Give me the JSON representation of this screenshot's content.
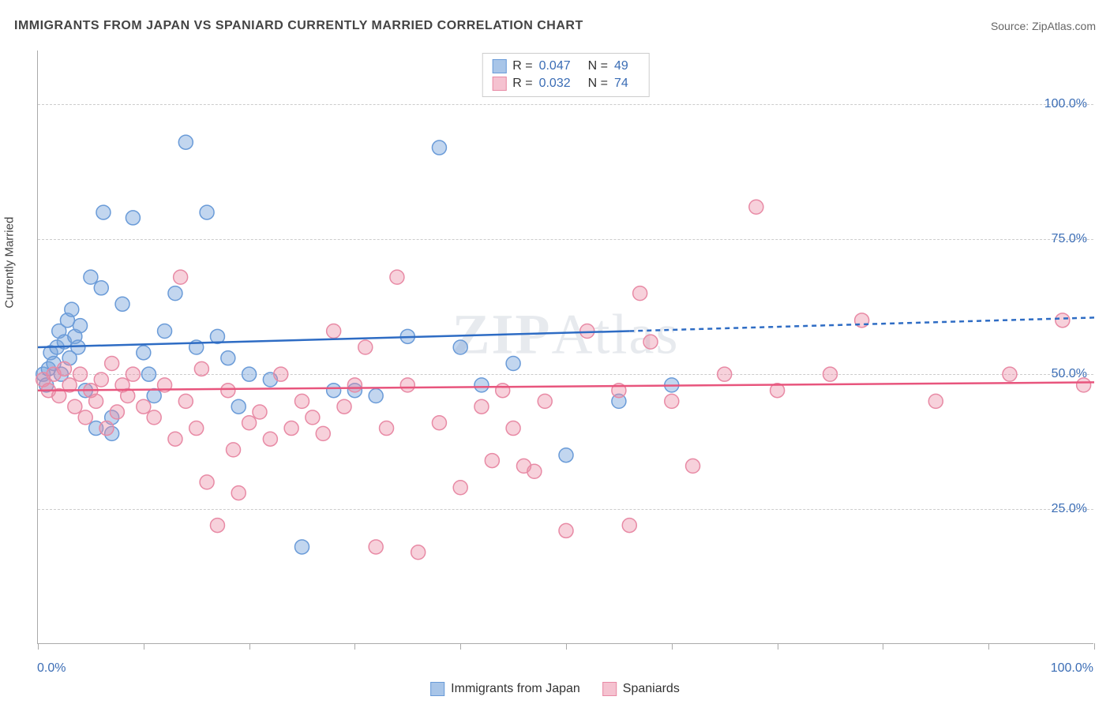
{
  "title": "IMMIGRANTS FROM JAPAN VS SPANIARD CURRENTLY MARRIED CORRELATION CHART",
  "source_label": "Source: ",
  "source_value": "ZipAtlas.com",
  "watermark": {
    "part1": "ZIP",
    "part2": "Atlas"
  },
  "y_axis_title": "Currently Married",
  "chart": {
    "type": "scatter",
    "xlim": [
      0,
      100
    ],
    "ylim": [
      0,
      110
    ],
    "x_ticks": [
      0,
      10,
      20,
      30,
      40,
      50,
      60,
      70,
      80,
      90,
      100
    ],
    "y_ticks": [
      25,
      50,
      75,
      100
    ],
    "x_tick_labels": {
      "0": "0.0%",
      "100": "100.0%"
    },
    "y_tick_labels": {
      "25": "25.0%",
      "50": "50.0%",
      "75": "75.0%",
      "100": "100.0%"
    },
    "grid_color": "#cccccc",
    "background_color": "#ffffff",
    "marker_radius": 9,
    "marker_stroke_width": 1.5,
    "series": [
      {
        "name": "Immigrants from Japan",
        "color_fill": "rgba(120,165,220,0.45)",
        "color_stroke": "#6a9bd8",
        "swatch_fill": "#a8c5e8",
        "swatch_stroke": "#6a9bd8",
        "R": "0.047",
        "N": "49",
        "trend": {
          "x1": 0,
          "y1": 55,
          "x2": 56,
          "y2": 58,
          "x3": 100,
          "y3": 60.5,
          "stroke": "#2e6cc4",
          "width": 2.5
        },
        "points": [
          [
            0.5,
            50
          ],
          [
            0.8,
            48
          ],
          [
            1,
            51
          ],
          [
            1.2,
            54
          ],
          [
            1.5,
            52
          ],
          [
            1.8,
            55
          ],
          [
            2,
            58
          ],
          [
            2.2,
            50
          ],
          [
            2.5,
            56
          ],
          [
            2.8,
            60
          ],
          [
            3,
            53
          ],
          [
            3.2,
            62
          ],
          [
            3.5,
            57
          ],
          [
            3.8,
            55
          ],
          [
            4,
            59
          ],
          [
            4.5,
            47
          ],
          [
            5,
            68
          ],
          [
            5.5,
            40
          ],
          [
            6,
            66
          ],
          [
            6.2,
            80
          ],
          [
            7,
            42
          ],
          [
            7,
            39
          ],
          [
            8,
            63
          ],
          [
            9,
            79
          ],
          [
            10,
            54
          ],
          [
            10.5,
            50
          ],
          [
            11,
            46
          ],
          [
            12,
            58
          ],
          [
            13,
            65
          ],
          [
            14,
            93
          ],
          [
            15,
            55
          ],
          [
            16,
            80
          ],
          [
            17,
            57
          ],
          [
            18,
            53
          ],
          [
            19,
            44
          ],
          [
            20,
            50
          ],
          [
            22,
            49
          ],
          [
            25,
            18
          ],
          [
            28,
            47
          ],
          [
            30,
            47
          ],
          [
            32,
            46
          ],
          [
            35,
            57
          ],
          [
            38,
            92
          ],
          [
            40,
            55
          ],
          [
            42,
            48
          ],
          [
            45,
            52
          ],
          [
            50,
            35
          ],
          [
            55,
            45
          ],
          [
            60,
            48
          ]
        ]
      },
      {
        "name": "Spaniards",
        "color_fill": "rgba(235,140,165,0.40)",
        "color_stroke": "#e88aa5",
        "swatch_fill": "#f5c2d0",
        "swatch_stroke": "#e88aa5",
        "R": "0.032",
        "N": "74",
        "trend": {
          "x1": 0,
          "y1": 47,
          "x2": 100,
          "y2": 48.5,
          "stroke": "#e8557d",
          "width": 2.5
        },
        "points": [
          [
            0.5,
            49
          ],
          [
            1,
            47
          ],
          [
            1.5,
            50
          ],
          [
            2,
            46
          ],
          [
            2.5,
            51
          ],
          [
            3,
            48
          ],
          [
            3.5,
            44
          ],
          [
            4,
            50
          ],
          [
            4.5,
            42
          ],
          [
            5,
            47
          ],
          [
            5.5,
            45
          ],
          [
            6,
            49
          ],
          [
            6.5,
            40
          ],
          [
            7,
            52
          ],
          [
            7.5,
            43
          ],
          [
            8,
            48
          ],
          [
            8.5,
            46
          ],
          [
            9,
            50
          ],
          [
            10,
            44
          ],
          [
            11,
            42
          ],
          [
            12,
            48
          ],
          [
            13,
            38
          ],
          [
            13.5,
            68
          ],
          [
            14,
            45
          ],
          [
            15,
            40
          ],
          [
            15.5,
            51
          ],
          [
            16,
            30
          ],
          [
            17,
            22
          ],
          [
            18,
            47
          ],
          [
            18.5,
            36
          ],
          [
            19,
            28
          ],
          [
            20,
            41
          ],
          [
            21,
            43
          ],
          [
            22,
            38
          ],
          [
            23,
            50
          ],
          [
            24,
            40
          ],
          [
            25,
            45
          ],
          [
            26,
            42
          ],
          [
            27,
            39
          ],
          [
            28,
            58
          ],
          [
            29,
            44
          ],
          [
            30,
            48
          ],
          [
            31,
            55
          ],
          [
            32,
            18
          ],
          [
            33,
            40
          ],
          [
            34,
            68
          ],
          [
            35,
            48
          ],
          [
            36,
            17
          ],
          [
            38,
            41
          ],
          [
            40,
            29
          ],
          [
            42,
            44
          ],
          [
            43,
            34
          ],
          [
            44,
            47
          ],
          [
            45,
            40
          ],
          [
            46,
            33
          ],
          [
            47,
            32
          ],
          [
            48,
            45
          ],
          [
            50,
            21
          ],
          [
            52,
            58
          ],
          [
            55,
            47
          ],
          [
            56,
            22
          ],
          [
            57,
            65
          ],
          [
            58,
            56
          ],
          [
            60,
            45
          ],
          [
            62,
            33
          ],
          [
            65,
            50
          ],
          [
            68,
            81
          ],
          [
            70,
            47
          ],
          [
            75,
            50
          ],
          [
            78,
            60
          ],
          [
            85,
            45
          ],
          [
            92,
            50
          ],
          [
            97,
            60
          ],
          [
            99,
            48
          ]
        ]
      }
    ]
  },
  "legend": {
    "r_label": "R =",
    "n_label": "N ="
  }
}
